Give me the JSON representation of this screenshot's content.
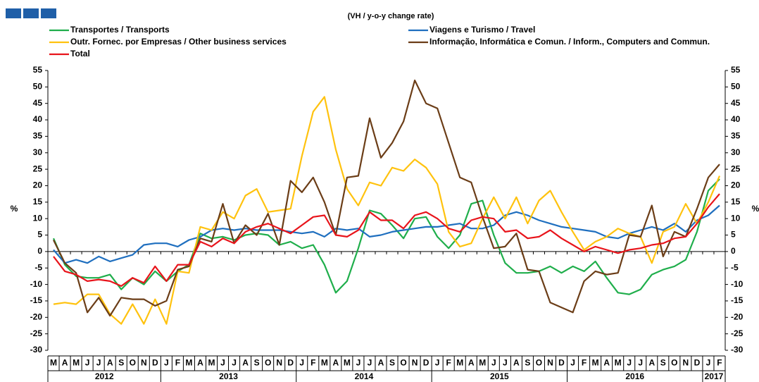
{
  "chart_data": {
    "type": "line",
    "subtitle": "(VH / y-o-y change rate)",
    "y_label": "%",
    "categories": [
      "M",
      "A",
      "M",
      "J",
      "J",
      "A",
      "S",
      "O",
      "N",
      "D",
      "J",
      "F",
      "M",
      "A",
      "M",
      "J",
      "J",
      "A",
      "S",
      "O",
      "N",
      "D",
      "J",
      "F",
      "M",
      "A",
      "M",
      "J",
      "J",
      "A",
      "S",
      "O",
      "N",
      "D",
      "J",
      "F",
      "M",
      "A",
      "M",
      "J",
      "J",
      "A",
      "S",
      "O",
      "N",
      "D",
      "J",
      "F",
      "M",
      "A",
      "M",
      "J",
      "J",
      "A",
      "S",
      "O",
      "N",
      "D",
      "J",
      "F"
    ],
    "x_groups": [
      {
        "label": "2012",
        "span": 10
      },
      {
        "label": "2013",
        "span": 12
      },
      {
        "label": "2014",
        "span": 12
      },
      {
        "label": "2015",
        "span": 12
      },
      {
        "label": "2016",
        "span": 12
      },
      {
        "label": "2017",
        "span": 2
      }
    ],
    "ylim": [
      -30,
      55
    ],
    "yticks": [
      -30,
      -25,
      -20,
      -15,
      -10,
      -5,
      0,
      5,
      10,
      15,
      20,
      25,
      30,
      35,
      40,
      45,
      50,
      55
    ],
    "series": [
      {
        "name": "Transportes / Transports",
        "color": "#1fae4b",
        "values": [
          4,
          -4,
          -7.5,
          -8,
          -8,
          -7,
          -11.5,
          -8,
          -10,
          -6,
          -9,
          -6,
          -4,
          5.5,
          4,
          4.5,
          3.5,
          5,
          5.5,
          5,
          2,
          3,
          1,
          2,
          -4,
          -12.5,
          -9,
          1,
          12.5,
          11.5,
          8,
          4,
          10,
          10.5,
          4.5,
          1,
          5,
          14.5,
          15.5,
          5,
          -3.5,
          -6.5,
          -6.5,
          -6,
          -4.5,
          -6.5,
          -4.5,
          -6,
          -3,
          -8,
          -12.5,
          -13,
          -11.5,
          -7,
          -5.5,
          -4.5,
          -2.5,
          6,
          18.5,
          22
        ]
      },
      {
        "name": "Viagens e Turismo / Travel",
        "color": "#1f6fbf",
        "values": [
          0.5,
          -3.5,
          -2.5,
          -3.5,
          -1.5,
          -3,
          -2,
          -1,
          2,
          2.5,
          2.5,
          1.5,
          3.5,
          4.5,
          6.5,
          7,
          6.5,
          7,
          6.5,
          6.5,
          6.5,
          6,
          5.5,
          6,
          4.5,
          7,
          6.5,
          7,
          4.5,
          5,
          6,
          6.5,
          7,
          7.5,
          7.5,
          8,
          8.5,
          7,
          7,
          8,
          11,
          12,
          11,
          9.5,
          8.5,
          7.5,
          7,
          6.5,
          6,
          4.5,
          4,
          5.5,
          6.5,
          7.5,
          6.5,
          8.5,
          6,
          9.5,
          11,
          14
        ]
      },
      {
        "name": "Outr. Fornec. por Empresas / Other business services",
        "color": "#ffc20e",
        "values": [
          -16,
          -15.5,
          -16,
          -13,
          -13,
          -19,
          -22,
          -16,
          -22,
          -14.5,
          -22,
          -6,
          -6.5,
          7.5,
          6.5,
          12,
          10,
          17,
          19,
          12,
          12.5,
          13,
          29,
          42.5,
          47,
          31,
          19,
          14,
          21,
          20,
          25.5,
          24.5,
          28,
          25.5,
          20.5,
          6,
          1.5,
          2.5,
          10,
          16.5,
          10,
          16.5,
          8.5,
          15.5,
          18.5,
          12,
          6,
          0.5,
          3,
          4.5,
          7,
          5.5,
          4.5,
          -3.5,
          6,
          7.5,
          14.5,
          8.5,
          15,
          23
        ]
      },
      {
        "name": "Informação, Informática e Comun. / Inform., Computers and Commun.",
        "color": "#6b3d17",
        "values": [
          3.5,
          -3.5,
          -6.5,
          -18.5,
          -14,
          -19.5,
          -14,
          -14.5,
          -14.5,
          -16.5,
          -15,
          -5.5,
          -4.5,
          4,
          3,
          14.5,
          2.5,
          8,
          5,
          11.5,
          2,
          21.5,
          18,
          22.5,
          15,
          5,
          22.5,
          23,
          40.5,
          28.5,
          33,
          39.5,
          52,
          45,
          43.5,
          33,
          22.5,
          21,
          10.5,
          1,
          1.5,
          5.5,
          -5.5,
          -6,
          -15.5,
          -17,
          -18.5,
          -9,
          -6,
          -7,
          -6.5,
          5,
          4.5,
          14,
          -1.5,
          6,
          4.5,
          13,
          22.5,
          26.5
        ]
      },
      {
        "name": "Total",
        "color": "#e8141b",
        "values": [
          -1.5,
          -6,
          -7,
          -9,
          -8.5,
          -9,
          -10.5,
          -8,
          -9.5,
          -4.5,
          -9,
          -4,
          -4,
          3,
          1.5,
          4,
          2.5,
          6,
          7.5,
          8.5,
          7,
          5.5,
          8,
          10.5,
          11,
          5,
          4.5,
          6.5,
          12,
          9.5,
          9.5,
          7,
          11,
          12,
          10,
          7,
          6,
          9.5,
          10.5,
          10,
          6,
          6.5,
          4,
          4.5,
          6.5,
          4,
          2,
          0,
          1.5,
          0.5,
          -0.5,
          0.5,
          1,
          2,
          2.5,
          4,
          4.5,
          8.5,
          13.5,
          17.5
        ]
      }
    ]
  }
}
